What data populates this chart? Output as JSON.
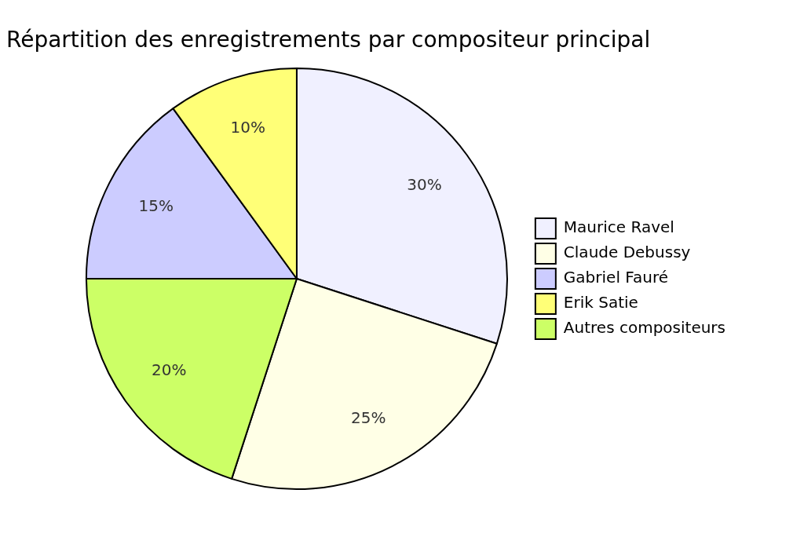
{
  "chart_data": {
    "type": "pie",
    "title": "Répartition des enregistrements par compositeur principal",
    "categories": [
      "Maurice Ravel",
      "Claude Debussy",
      "Gabriel Fauré",
      "Erik Satie",
      "Autres compositeurs"
    ],
    "values": [
      30,
      25,
      15,
      10,
      20
    ],
    "colors": [
      "#f0f0ff",
      "#ffffe6",
      "#ccccff",
      "#ffff77",
      "#ccff66"
    ],
    "value_labels": [
      "30%",
      "25%",
      "15%",
      "10%",
      "20%"
    ],
    "legend": "right"
  }
}
